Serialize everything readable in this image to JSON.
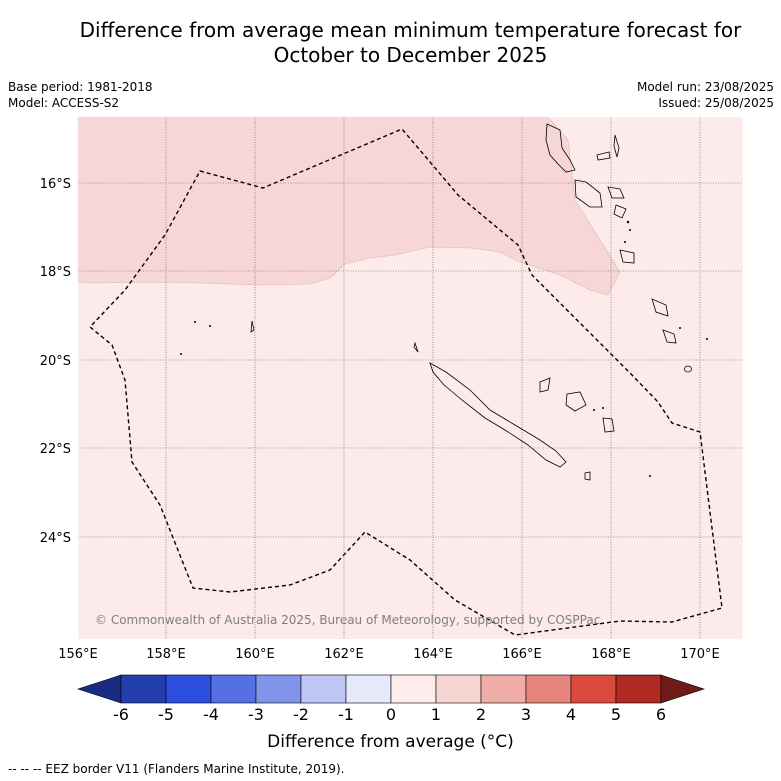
{
  "title": {
    "line1": "Difference from average mean minimum temperature forecast for",
    "line2": "October to December 2025"
  },
  "meta": {
    "base_period": "Base period: 1981-2018",
    "model": "Model: ACCESS-S2",
    "model_run": "Model run: 23/08/2025",
    "issued": "Issued: 25/08/2025"
  },
  "map": {
    "lon_ticks": [
      "156°E",
      "158°E",
      "160°E",
      "162°E",
      "164°E",
      "166°E",
      "168°E",
      "170°E"
    ],
    "lat_ticks": [
      "16°S",
      "18°S",
      "20°S",
      "22°S",
      "24°S"
    ],
    "copyright": "© Commonwealth of Australia 2025, Bureau of Meteorology, supported by COSPPac",
    "colors": {
      "anomaly_0_1": "#fcebea",
      "anomaly_1_2": "#f7d7d5",
      "land_outline": "#000000",
      "eez_border": "#000000"
    }
  },
  "colorbar": {
    "labels": [
      "-6",
      "-5",
      "-4",
      "-3",
      "-2",
      "-1",
      "0",
      "1",
      "2",
      "3",
      "4",
      "5",
      "6"
    ],
    "colors": [
      "#1a2b86",
      "#233fae",
      "#2d4fe0",
      "#5470e4",
      "#8094ea",
      "#bfc6f3",
      "#e6e9fa",
      "#fdecea",
      "#f7d5d2",
      "#f0aca6",
      "#e7847c",
      "#dc4a3f",
      "#ae2a22",
      "#701b18"
    ],
    "label": "Difference from average (°C)"
  },
  "footer": "-- -- -- EEZ border V11 (Flanders Marine Institute, 2019)."
}
